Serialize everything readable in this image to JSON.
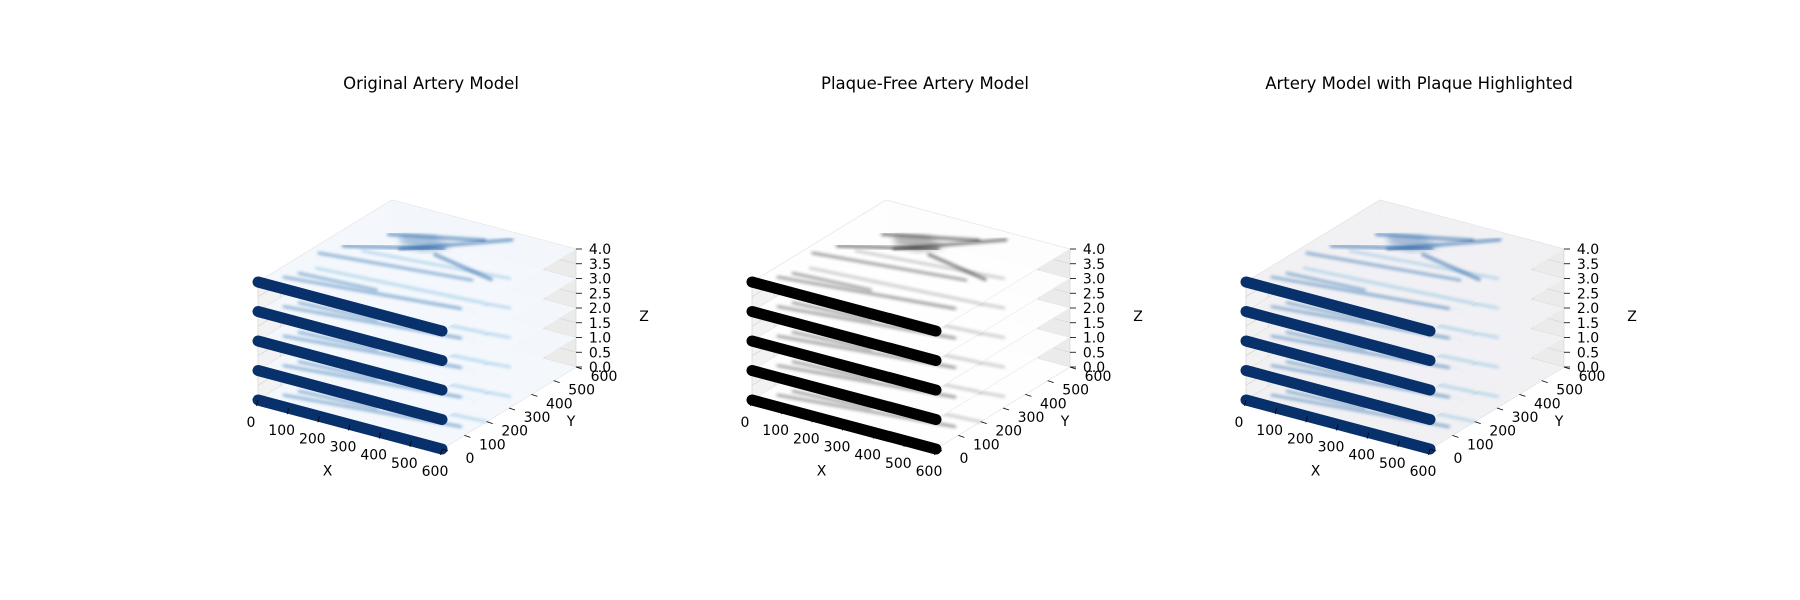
{
  "chart_data": [
    {
      "type": "3d-scatter-with-stacked-image-slices",
      "title": "Original Artery Model",
      "xlabel": "X",
      "ylabel": "Y",
      "zlabel": "Z",
      "xlim": [
        0,
        600
      ],
      "ylim": [
        0,
        600
      ],
      "zlim": [
        0,
        4
      ],
      "xticks": [
        "0",
        "100",
        "200",
        "300",
        "400",
        "500",
        "600"
      ],
      "yticks": [
        "0",
        "100",
        "200",
        "300",
        "400",
        "500",
        "600"
      ],
      "zticks": [
        "0.0",
        "0.5",
        "1.0",
        "1.5",
        "2.0",
        "2.5",
        "3.0",
        "3.5",
        "4.0"
      ],
      "slice_z": [
        0,
        1,
        2,
        3,
        4
      ],
      "slice_colormap": "Blues",
      "centerline": {
        "x": [
          0,
          600
        ],
        "y": [
          0,
          0
        ],
        "z_levels": [
          0,
          1,
          2,
          3,
          4
        ]
      },
      "marker_color": "#08306b",
      "grid": true
    },
    {
      "type": "3d-scatter-with-stacked-image-slices",
      "title": "Plaque-Free Artery Model",
      "xlabel": "X",
      "ylabel": "Y",
      "zlabel": "Z",
      "xlim": [
        0,
        600
      ],
      "ylim": [
        0,
        600
      ],
      "zlim": [
        0,
        4
      ],
      "xticks": [
        "0",
        "100",
        "200",
        "300",
        "400",
        "500",
        "600"
      ],
      "yticks": [
        "0",
        "100",
        "200",
        "300",
        "400",
        "500",
        "600"
      ],
      "zticks": [
        "0.0",
        "0.5",
        "1.0",
        "1.5",
        "2.0",
        "2.5",
        "3.0",
        "3.5",
        "4.0"
      ],
      "slice_z": [
        0,
        1,
        2,
        3,
        4
      ],
      "slice_colormap": "Greys",
      "centerline": {
        "x": [
          0,
          600
        ],
        "y": [
          0,
          0
        ],
        "z_levels": [
          0,
          1,
          2,
          3,
          4
        ]
      },
      "marker_color": "#000000",
      "grid": true
    },
    {
      "type": "3d-scatter-with-stacked-image-slices",
      "title": "Artery Model with Plaque Highlighted",
      "xlabel": "X",
      "ylabel": "Y",
      "zlabel": "Z",
      "xlim": [
        0,
        600
      ],
      "ylim": [
        0,
        600
      ],
      "zlim": [
        0,
        4
      ],
      "xticks": [
        "0",
        "100",
        "200",
        "300",
        "400",
        "500",
        "600"
      ],
      "yticks": [
        "0",
        "100",
        "200",
        "300",
        "400",
        "500",
        "600"
      ],
      "zticks": [
        "0.0",
        "0.5",
        "1.0",
        "1.5",
        "2.0",
        "2.5",
        "3.0",
        "3.5",
        "4.0"
      ],
      "slice_z": [
        0,
        1,
        2,
        3,
        4
      ],
      "slice_colormap": "Blues (plaque highlighted)",
      "centerline": {
        "x": [
          0,
          600
        ],
        "y": [
          0,
          0
        ],
        "z_levels": [
          0,
          1,
          2,
          3,
          4
        ]
      },
      "marker_color": "#08306b",
      "grid": true
    }
  ],
  "colors": {
    "pane": "#f2f2f2",
    "grid": "#d8d8d8",
    "blues_light": "#f3f8fd",
    "blues_mid": "#6baed6",
    "blues_dark": "#08519c",
    "grey_dark": "#222222",
    "highlight_tint": "#f1f1f4"
  }
}
